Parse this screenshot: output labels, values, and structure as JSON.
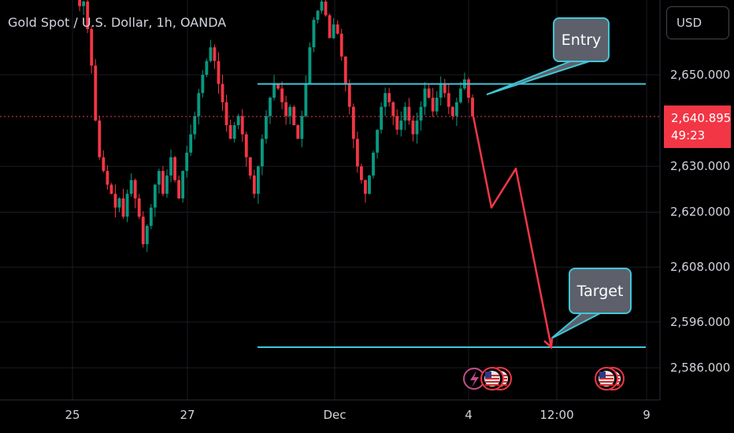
{
  "header": {
    "title": "Gold Spot / U.S. Dollar, 1h, OANDA",
    "currency_button": "USD"
  },
  "price_tag": {
    "price": "2,640.895",
    "countdown": "49:23"
  },
  "annotations": {
    "entry_label": "Entry",
    "target_label": "Target",
    "entry_level": 2648.0,
    "target_level": 2590.5
  },
  "colors": {
    "background": "#000000",
    "up_candle": "#089981",
    "down_candle": "#f23645",
    "level_line": "#3ec7d8",
    "projection": "#f23645",
    "callout_fill": "#5d606b"
  },
  "chart_data": {
    "type": "candlestick",
    "title": "Gold Spot / U.S. Dollar, 1h, OANDA",
    "ylabel": "",
    "xlabel": "",
    "ylim": [
      2583,
      2668
    ],
    "y_ticks": [
      "2,650.000",
      "2,630.000",
      "2,620.000",
      "2,608.000",
      "2,596.000",
      "2,586.000"
    ],
    "y_tick_values": [
      2650,
      2630,
      2620,
      2608,
      2596,
      2586
    ],
    "x_ticks": [
      "25",
      "27",
      "Dec",
      "4",
      "12:00",
      "9"
    ],
    "current_price": 2640.895,
    "grid": true,
    "close_path": [
      2668,
      2668,
      2667,
      2665,
      2666,
      2660,
      2652,
      2640,
      2632,
      2629,
      2626,
      2624,
      2621,
      2623,
      2619,
      2624,
      2627,
      2623,
      2619,
      2613,
      2617,
      2621,
      2626,
      2629,
      2624,
      2628,
      2632,
      2627,
      2623,
      2629,
      2633,
      2637,
      2641,
      2646,
      2650,
      2653,
      2656,
      2653,
      2648,
      2644,
      2639,
      2636,
      2639,
      2641,
      2637,
      2632,
      2628,
      2624,
      2630,
      2636,
      2641,
      2645,
      2648,
      2647,
      2644,
      2641,
      2643,
      2639,
      2636,
      2641,
      2648,
      2656,
      2662,
      2664,
      2666,
      2663,
      2658,
      2661,
      2659,
      2654,
      2648,
      2643,
      2636,
      2630,
      2627,
      2624,
      2628,
      2633,
      2638,
      2643,
      2646,
      2644,
      2641,
      2638,
      2640,
      2643,
      2640,
      2637,
      2640,
      2643,
      2647,
      2645,
      2642,
      2645,
      2648,
      2646,
      2643,
      2641,
      2644,
      2647,
      2649,
      2645,
      2640.9
    ],
    "projection_path": [
      {
        "x": "Dec 4",
        "y": 2640.9
      },
      {
        "x": "Dec 4 05:00",
        "y": 2621
      },
      {
        "x": "Dec 4 09:00",
        "y": 2629.5
      },
      {
        "x": "Dec 4 12:00",
        "y": 2590.5
      }
    ]
  }
}
